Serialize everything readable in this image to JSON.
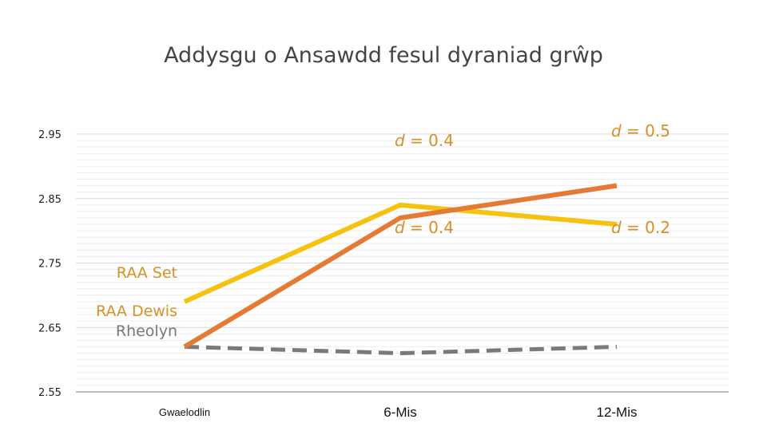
{
  "chart_data": {
    "type": "line",
    "title": "Addysgu o Ansawdd fesul dyraniad grŵp",
    "categories": [
      "Gwaelodlin",
      "6-Mis",
      "12-Mis"
    ],
    "yticks": [
      "2.95",
      "2.85",
      "2.75",
      "2.65",
      "2.55"
    ],
    "ylim": [
      2.55,
      2.95
    ],
    "grid": true,
    "series": [
      {
        "name": "RAA Set",
        "color": "#f5c20f",
        "style": "solid",
        "values": [
          2.69,
          2.84,
          2.81
        ]
      },
      {
        "name": "RAA Dewis",
        "color": "#e57a35",
        "style": "solid",
        "values": [
          2.62,
          2.82,
          2.87
        ]
      },
      {
        "name": "Rheolyn",
        "color": "#7a7a7a",
        "style": "dashed",
        "values": [
          2.62,
          2.61,
          2.62
        ]
      }
    ],
    "annotations": [
      {
        "prefix": "d",
        "text": " = 0.4",
        "category": "6-Mis",
        "y": 2.94
      },
      {
        "prefix": "d",
        "text": " = 0.4",
        "category": "6-Mis",
        "y": 2.805
      },
      {
        "prefix": "d",
        "text": " = 0.5",
        "category": "12-Mis",
        "y": 2.955
      },
      {
        "prefix": "d",
        "text": " = 0.2",
        "category": "12-Mis",
        "y": 2.805
      }
    ]
  }
}
